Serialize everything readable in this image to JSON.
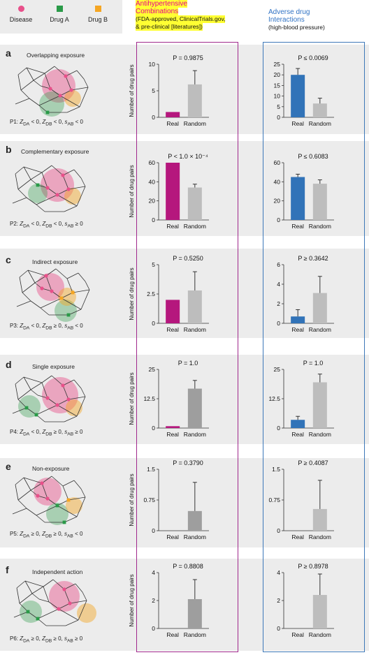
{
  "legend": {
    "disease": {
      "label": "Disease",
      "color": "#e8508a"
    },
    "drug_a": {
      "label": "Drug A",
      "color": "#2a9a48"
    },
    "drug_b": {
      "label": "Drug B",
      "color": "#f5a623"
    }
  },
  "header": {
    "antihypertensive_line1": "Antihypertensive",
    "antihypertensive_line2": "Combinations",
    "antihypertensive_sub1": "(FDA-approved, ClinicalTrials.gov,",
    "antihypertensive_sub2": "& pre-clinical [literatures])",
    "ade_line1": "Adverse drug",
    "ade_line2": "Interactions",
    "ade_sub": "(high-blood pressure)"
  },
  "colors": {
    "anti_real": "#b5177d",
    "ade_real": "#3173b8",
    "random_light": "#bdbdbd",
    "random_dark": "#9e9e9e"
  },
  "panels": [
    {
      "letter": "a",
      "title": "Overlapping exposure",
      "cond": "P1: Z_DA < 0, Z_DB < 0, s_AB < 0"
    },
    {
      "letter": "b",
      "title": "Complementary exposure",
      "cond": "P2: Z_DA < 0, Z_DB < 0, s_AB ≥ 0"
    },
    {
      "letter": "c",
      "title": "Indirect exposure",
      "cond": "P3: Z_DA < 0, Z_DB ≥ 0, s_AB < 0"
    },
    {
      "letter": "d",
      "title": "Single exposure",
      "cond": "P4: Z_DA < 0, Z_DB ≥ 0, s_AB ≥ 0"
    },
    {
      "letter": "e",
      "title": "Non-exposure",
      "cond": "P5: Z_DA ≥ 0, Z_DB ≥ 0, s_AB < 0"
    },
    {
      "letter": "f",
      "title": "Independent action",
      "cond": "P6: Z_DA ≥ 0, Z_DB ≥ 0, s_AB ≥ 0"
    }
  ],
  "chart_data": [
    {
      "type": "bar",
      "panel": "a",
      "group": "Antihypertensive Combinations",
      "title": "P = 0.9875",
      "ylabel": "Number of drug pairs",
      "categories": [
        "Real",
        "Random"
      ],
      "values": [
        1,
        6.2
      ],
      "errors": [
        0,
        2.6
      ],
      "ylim": [
        0,
        10
      ],
      "yticks": [
        "0",
        "5",
        "10"
      ]
    },
    {
      "type": "bar",
      "panel": "a",
      "group": "Adverse drug Interactions",
      "title": "P ≤ 0.0069",
      "ylabel": "",
      "categories": [
        "Real",
        "Random"
      ],
      "values": [
        20,
        6.5
      ],
      "errors": [
        3,
        2.5
      ],
      "ylim": [
        0,
        25
      ],
      "yticks": [
        "0",
        "5",
        "10",
        "15",
        "20",
        "25"
      ]
    },
    {
      "type": "bar",
      "panel": "b",
      "group": "Antihypertensive Combinations",
      "title": "P < 1.0 × 10⁻⁴",
      "ylabel": "Number of drug pairs",
      "categories": [
        "Real",
        "Random"
      ],
      "values": [
        60,
        34
      ],
      "errors": [
        0,
        3.5
      ],
      "ylim": [
        0,
        60
      ],
      "yticks": [
        "0",
        "20",
        "40",
        "60"
      ]
    },
    {
      "type": "bar",
      "panel": "b",
      "group": "Adverse drug Interactions",
      "title": "P ≤ 0.6083",
      "ylabel": "",
      "categories": [
        "Real",
        "Random"
      ],
      "values": [
        45,
        38
      ],
      "errors": [
        3,
        4
      ],
      "ylim": [
        0,
        60
      ],
      "yticks": [
        "0",
        "20",
        "40",
        "60"
      ]
    },
    {
      "type": "bar",
      "panel": "c",
      "group": "Antihypertensive Combinations",
      "title": "P = 0.5250",
      "ylabel": "Number of drug pairs",
      "categories": [
        "Real",
        "Random"
      ],
      "values": [
        2,
        2.8
      ],
      "errors": [
        0,
        1.6
      ],
      "ylim": [
        0,
        5
      ],
      "yticks": [
        "0",
        "2.5",
        "5"
      ]
    },
    {
      "type": "bar",
      "panel": "c",
      "group": "Adverse drug Interactions",
      "title": "P ≥ 0.3642",
      "ylabel": "",
      "categories": [
        "Real",
        "Random"
      ],
      "values": [
        0.7,
        3.1
      ],
      "errors": [
        0.7,
        1.7
      ],
      "ylim": [
        0,
        6
      ],
      "yticks": [
        "0",
        "2",
        "4",
        "6"
      ]
    },
    {
      "type": "bar",
      "panel": "d",
      "group": "Antihypertensive Combinations",
      "title": "P = 1.0",
      "ylabel": "Number of drug pairs",
      "categories": [
        "Real",
        "Random"
      ],
      "values": [
        0.8,
        16.8
      ],
      "errors": [
        0,
        3.5
      ],
      "ylim": [
        0,
        25
      ],
      "yticks": [
        "0",
        "12.5",
        "25"
      ]
    },
    {
      "type": "bar",
      "panel": "d",
      "group": "Adverse drug Interactions",
      "title": "P = 1.0",
      "ylabel": "",
      "categories": [
        "Real",
        "Random"
      ],
      "values": [
        3.5,
        19.5
      ],
      "errors": [
        1.5,
        3.5
      ],
      "ylim": [
        0,
        25
      ],
      "yticks": [
        "0",
        "12.5",
        "25"
      ]
    },
    {
      "type": "bar",
      "panel": "e",
      "group": "Antihypertensive Combinations",
      "title": "P = 0.3790",
      "ylabel": "Number of drug pairs",
      "categories": [
        "Real",
        "Random"
      ],
      "values": [
        0,
        0.48
      ],
      "errors": [
        0,
        0.7
      ],
      "ylim": [
        0,
        1.5
      ],
      "yticks": [
        "0",
        "0.75",
        "1.5"
      ]
    },
    {
      "type": "bar",
      "panel": "e",
      "group": "Adverse drug Interactions",
      "title": "P ≥ 0.4087",
      "ylabel": "",
      "categories": [
        "Real",
        "Random"
      ],
      "values": [
        0,
        0.53
      ],
      "errors": [
        0,
        0.7
      ],
      "ylim": [
        0,
        1.5
      ],
      "yticks": [
        "0",
        "0.75",
        "1.5"
      ]
    },
    {
      "type": "bar",
      "panel": "f",
      "group": "Antihypertensive Combinations",
      "title": "P = 0.8808",
      "ylabel": "Number of drug pairs",
      "categories": [
        "Real",
        "Random"
      ],
      "values": [
        0,
        2.1
      ],
      "errors": [
        0,
        1.4
      ],
      "ylim": [
        0,
        4
      ],
      "yticks": [
        "0",
        "2",
        "4"
      ]
    },
    {
      "type": "bar",
      "panel": "f",
      "group": "Adverse drug Interactions",
      "title": "P ≥ 0.8978",
      "ylabel": "",
      "categories": [
        "Real",
        "Random"
      ],
      "values": [
        0,
        2.4
      ],
      "errors": [
        0,
        1.5
      ],
      "ylim": [
        0,
        4
      ],
      "yticks": [
        "0",
        "2",
        "4"
      ]
    }
  ]
}
